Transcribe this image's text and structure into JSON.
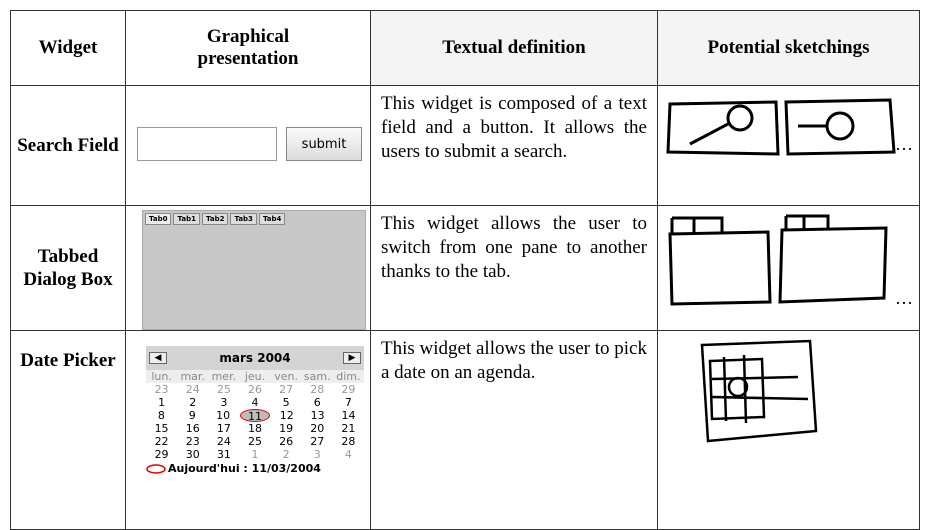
{
  "table": {
    "headers": [
      "Widget",
      "Graphical presentation",
      "Textual definition",
      "Potential sketchings"
    ],
    "rows": [
      {
        "widget": "Search Field",
        "presentation": {
          "button": "submit"
        },
        "definition": "This widget is composed of a text field and a button. It allows the users to submit a search.",
        "ellipsis": "…"
      },
      {
        "widget": "Tabbed Dialog Box",
        "presentation": {
          "tabs": [
            "Tab0",
            "Tab1",
            "Tab2",
            "Tab3",
            "Tab4"
          ]
        },
        "definition": "This widget allows the user to switch from one pane to another thanks to the tab.",
        "ellipsis": "…"
      },
      {
        "widget": "Date Picker",
        "presentation": {
          "month": "mars 2004",
          "weekdays": [
            "lun.",
            "mar.",
            "mer.",
            "jeu.",
            "ven.",
            "sam.",
            "dim."
          ],
          "weeks": [
            [
              23,
              24,
              25,
              26,
              27,
              28,
              29
            ],
            [
              1,
              2,
              3,
              4,
              5,
              6,
              7
            ],
            [
              8,
              9,
              10,
              11,
              12,
              13,
              14
            ],
            [
              15,
              16,
              17,
              18,
              19,
              20,
              21
            ],
            [
              22,
              23,
              24,
              25,
              26,
              27,
              28
            ],
            [
              29,
              30,
              31,
              1,
              2,
              3,
              4
            ]
          ],
          "today": "Aujourd'hui : 11/03/2004"
        },
        "definition": "This widget allows the user to pick a date on an agenda."
      }
    ]
  }
}
